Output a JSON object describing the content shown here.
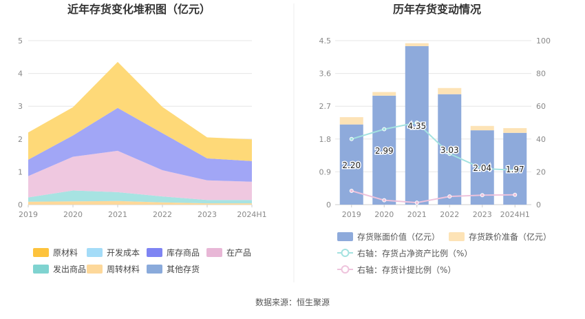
{
  "source_text": "数据来源：恒生聚源",
  "chart_data": [
    {
      "type": "area",
      "title": "近年存货变化堆积图（亿元）",
      "x": [
        "2019",
        "2020",
        "2021",
        "2022",
        "2023",
        "2024H1"
      ],
      "ylim": [
        0,
        5
      ],
      "yticks": [
        "0",
        "1",
        "2",
        "3",
        "4",
        "5"
      ],
      "grid": true,
      "stacked": true,
      "series": [
        {
          "name": "周转材料",
          "color": "#fdd89a",
          "values": [
            0.09,
            0.1,
            0.11,
            0.07,
            0.04,
            0.04
          ]
        },
        {
          "name": "发出商品",
          "color": "#a7e3e2",
          "values": [
            0.13,
            0.33,
            0.27,
            0.18,
            0.1,
            0.1
          ]
        },
        {
          "name": "在产品",
          "color": "#efc8e0",
          "values": [
            0.65,
            1.03,
            1.26,
            0.8,
            0.6,
            0.56
          ]
        },
        {
          "name": "库存商品",
          "color": "#a1a6f6",
          "values": [
            0.5,
            0.65,
            1.31,
            1.13,
            0.67,
            0.63
          ]
        },
        {
          "name": "原材料",
          "color": "#fed978",
          "values": [
            0.83,
            0.86,
            1.4,
            0.8,
            0.64,
            0.66
          ]
        }
      ],
      "legend": {
        "position": "bottom",
        "items": [
          {
            "name": "原材料",
            "color": "#fdc33d"
          },
          {
            "name": "开发成本",
            "color": "#a4dcf8"
          },
          {
            "name": "库存商品",
            "color": "#7e84f3"
          },
          {
            "name": "在产品",
            "color": "#e8b7d6"
          },
          {
            "name": "发出商品",
            "color": "#7fd3d0"
          },
          {
            "name": "周转材料",
            "color": "#fdd89a"
          },
          {
            "name": "其他存货",
            "color": "#8aaadb"
          }
        ]
      }
    },
    {
      "type": "bar",
      "title": "历年存货变动情况",
      "categories": [
        "2019",
        "2020",
        "2021",
        "2022",
        "2023",
        "2024H1"
      ],
      "ylim": [
        0,
        4.5
      ],
      "yticks": [
        "0",
        "0.9",
        "1.8",
        "2.7",
        "3.6",
        "4.5"
      ],
      "y2lim": [
        0,
        100
      ],
      "y2ticks": [
        "0",
        "20",
        "40",
        "60",
        "80",
        "100"
      ],
      "grid": true,
      "series": [
        {
          "name": "存货账面价值（亿元）",
          "type": "bar",
          "color": "#8eaadb",
          "values": [
            2.2,
            2.99,
            4.35,
            3.03,
            2.04,
            1.97
          ],
          "labels": [
            "2.20",
            "2.99",
            "4.35",
            "3.03",
            "2.04",
            "1.97"
          ]
        },
        {
          "name": "存货跌价准备（亿元）",
          "type": "bar",
          "color": "#fde3b6",
          "values": [
            0.2,
            0.1,
            0.08,
            0.17,
            0.12,
            0.13
          ]
        },
        {
          "name": "右轴：存货占净资产比例（%）",
          "type": "line",
          "color": "#a3e2e0",
          "values": [
            40,
            46,
            50,
            31,
            22,
            21
          ]
        },
        {
          "name": "右轴：存货计提比例（%）",
          "type": "line",
          "color": "#eec3dc",
          "values": [
            8.4,
            2.7,
            1.2,
            5.0,
            5.8,
            6.0
          ]
        }
      ],
      "legend": {
        "position": "bottom"
      }
    }
  ]
}
